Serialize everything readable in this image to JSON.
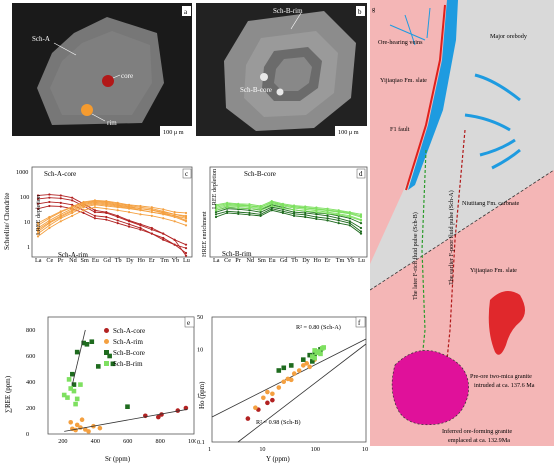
{
  "panels": {
    "a": {
      "label": "a",
      "sch_label": "Sch-A",
      "core_label": "core",
      "rim_label": "rim",
      "scale": "100 μ m"
    },
    "b": {
      "label": "b",
      "rim_label": "Sch-B-rim",
      "core_label": "Sch-B-core",
      "scale": "100 μ m"
    },
    "c": {
      "label": "c",
      "ylabel": "Scheelite/ Chondrite",
      "core_label": "Sch-A-core",
      "rim_label": "Sch-A-rim",
      "side_top": "LREE depletion",
      "side_bottom": "HREE enrichment",
      "elements": [
        "La",
        "Ce",
        "Pr",
        "Nd",
        "Sm",
        "Eu",
        "Gd",
        "Tb",
        "Dy",
        "Ho",
        "Er",
        "Tm",
        "Yb",
        "Lu"
      ],
      "yticks": [
        "1000",
        "100",
        "10",
        "1"
      ]
    },
    "d": {
      "label": "d",
      "core_label": "Sch-B-core",
      "rim_label": "Sch-B-rim",
      "side_top": "LREE depletion",
      "side_bottom": "HREE enrichment",
      "elements": [
        "La",
        "Ce",
        "Pr",
        "Nd",
        "Sm",
        "Eu",
        "Gd",
        "Tb",
        "Dy",
        "Ho",
        "Er",
        "Tm",
        "Yb",
        "Lu"
      ]
    },
    "e": {
      "label": "e",
      "xlabel": "Sr (ppm)",
      "ylabel": "∑REE (ppm)",
      "xticks": [
        "200",
        "400",
        "600",
        "800",
        "1000"
      ],
      "yticks": [
        "0",
        "200",
        "400",
        "600",
        "800"
      ],
      "legend": [
        {
          "name": "Sch-A-core",
          "color": "#b22222",
          "shape": "circle"
        },
        {
          "name": "Sch-A-rim",
          "color": "#f4a040",
          "shape": "circle"
        },
        {
          "name": "Sch-B-core",
          "color": "#1e6b1e",
          "shape": "square"
        },
        {
          "name": "Sch-B-rim",
          "color": "#7ee060",
          "shape": "square"
        }
      ]
    },
    "f": {
      "label": "f",
      "xlabel": "Y (ppm)",
      "ylabel": "Ho (ppm)",
      "xticks": [
        "1",
        "10",
        "100",
        "1000"
      ],
      "yticks": [
        "0.1",
        "1",
        "10",
        "50"
      ],
      "r2_a": "R² = 0.80 (Sch-A)",
      "r2_b": "R² = 0.98 (Sch-B)"
    },
    "g": {
      "label": "g",
      "ore_veins": "Ore-hearing veins",
      "major_orebody": "Major orebody",
      "yijiaqiao_upper": "Yijiaqiao Fm. slate",
      "f1_fault": "F1 fault",
      "later_pulse": "The later F-rich fluid pulse (Sch-B)",
      "earlier_pulse": "The earlier F-poor fluid pulse (Sch-A)",
      "niutitang": "Niutitang Fm. carbnate",
      "yijiaqiao_lower": "Yijiaqiao Fm. slate",
      "pre_ore": [
        "Pre-ore two-mica granite",
        "intruded at ca. 137.6 Ma"
      ],
      "inferred": [
        "Inferred ore-forming granite",
        "emplaced at ca. 132.9Ma"
      ]
    }
  },
  "chart_data": [
    {
      "type": "line",
      "panel": "c",
      "x": [
        "La",
        "Ce",
        "Pr",
        "Nd",
        "Sm",
        "Eu",
        "Gd",
        "Tb",
        "Dy",
        "Ho",
        "Er",
        "Tm",
        "Yb",
        "Lu"
      ],
      "ylim": [
        1,
        1000
      ],
      "yscale": "log",
      "series": [
        {
          "group": "Sch-A-core",
          "values": [
            90,
            100,
            95,
            80,
            50,
            30,
            28,
            20,
            14,
            10,
            7,
            5,
            3,
            2
          ]
        },
        {
          "group": "Sch-A-core",
          "values": [
            120,
            130,
            120,
            100,
            60,
            35,
            30,
            22,
            15,
            11,
            8,
            5,
            3,
            0.8
          ]
        },
        {
          "group": "Sch-A-core",
          "values": [
            60,
            70,
            65,
            55,
            35,
            22,
            20,
            15,
            11,
            8,
            5,
            3.5,
            2,
            1.5
          ]
        },
        {
          "group": "Sch-A-core",
          "values": [
            40,
            50,
            48,
            40,
            28,
            18,
            16,
            12,
            9,
            7,
            5,
            3,
            2,
            1
          ]
        },
        {
          "group": "Sch-A-rim",
          "values": [
            8,
            15,
            25,
            40,
            60,
            70,
            65,
            55,
            48,
            40,
            35,
            28,
            22,
            15
          ]
        },
        {
          "group": "Sch-A-rim",
          "values": [
            10,
            18,
            30,
            45,
            65,
            75,
            70,
            60,
            52,
            45,
            40,
            32,
            25,
            20
          ]
        },
        {
          "group": "Sch-A-rim",
          "values": [
            6,
            12,
            20,
            32,
            50,
            60,
            55,
            48,
            42,
            36,
            30,
            25,
            20,
            14
          ]
        },
        {
          "group": "Sch-A-rim",
          "values": [
            5,
            10,
            18,
            28,
            45,
            55,
            50,
            45,
            40,
            35,
            30,
            26,
            22,
            18
          ]
        },
        {
          "group": "Sch-A-rim",
          "values": [
            12,
            20,
            32,
            48,
            70,
            80,
            75,
            65,
            55,
            50,
            45,
            38,
            30,
            28
          ]
        },
        {
          "group": "Sch-A-rim",
          "values": [
            4,
            8,
            14,
            22,
            35,
            45,
            40,
            35,
            30,
            25,
            22,
            18,
            14,
            10
          ]
        },
        {
          "group": "Sch-A-rim",
          "values": [
            7,
            13,
            22,
            35,
            55,
            65,
            60,
            52,
            45,
            40,
            36,
            30,
            25,
            22
          ]
        }
      ]
    },
    {
      "type": "line",
      "panel": "d",
      "x": [
        "La",
        "Ce",
        "Pr",
        "Nd",
        "Sm",
        "Eu",
        "Gd",
        "Tb",
        "Dy",
        "Ho",
        "Er",
        "Tm",
        "Yb",
        "Lu"
      ],
      "ylim": [
        1,
        1000
      ],
      "yscale": "log",
      "series": [
        {
          "group": "Sch-B-core",
          "values": [
            30,
            40,
            38,
            35,
            30,
            45,
            38,
            30,
            28,
            25,
            22,
            18,
            14,
            8
          ]
        },
        {
          "group": "Sch-B-core",
          "values": [
            25,
            32,
            30,
            28,
            25,
            40,
            32,
            26,
            24,
            20,
            18,
            15,
            12,
            6
          ]
        },
        {
          "group": "Sch-B-core",
          "values": [
            35,
            45,
            42,
            40,
            36,
            55,
            45,
            36,
            32,
            28,
            26,
            22,
            18,
            12
          ]
        },
        {
          "group": "Sch-B-core",
          "values": [
            20,
            28,
            26,
            24,
            22,
            35,
            28,
            22,
            20,
            17,
            15,
            12,
            10,
            5
          ]
        },
        {
          "group": "Sch-B-rim",
          "values": [
            40,
            50,
            48,
            45,
            40,
            60,
            50,
            42,
            38,
            34,
            30,
            26,
            22,
            16
          ]
        },
        {
          "group": "Sch-B-rim",
          "values": [
            45,
            55,
            52,
            50,
            44,
            70,
            55,
            46,
            42,
            38,
            34,
            30,
            26,
            20
          ]
        },
        {
          "group": "Sch-B-rim",
          "values": [
            50,
            60,
            56,
            52,
            46,
            65,
            54,
            48,
            44,
            40,
            36,
            32,
            28,
            22
          ]
        },
        {
          "group": "Sch-B-rim",
          "values": [
            35,
            44,
            42,
            40,
            35,
            50,
            42,
            36,
            33,
            30,
            27,
            24,
            20,
            15
          ]
        },
        {
          "group": "Sch-B-rim",
          "values": [
            55,
            65,
            60,
            58,
            50,
            75,
            60,
            52,
            48,
            44,
            40,
            35,
            30,
            25
          ]
        }
      ]
    },
    {
      "type": "scatter",
      "panel": "e",
      "xlabel": "Sr (ppm)",
      "ylabel": "∑REE (ppm)",
      "xlim": [
        100,
        1000
      ],
      "ylim": [
        0,
        900
      ],
      "series": [
        {
          "name": "Sch-A-core",
          "points": [
            [
              700,
              140
            ],
            [
              800,
              150
            ],
            [
              900,
              180
            ],
            [
              950,
              200
            ],
            [
              780,
              130
            ]
          ]
        },
        {
          "name": "Sch-A-rim",
          "points": [
            [
              250,
              40
            ],
            [
              300,
              50
            ],
            [
              330,
              35
            ],
            [
              380,
              60
            ],
            [
              280,
              70
            ],
            [
              420,
              45
            ],
            [
              350,
              20
            ],
            [
              240,
              90
            ],
            [
              310,
              110
            ],
            [
              270,
              30
            ]
          ]
        },
        {
          "name": "Sch-B-core",
          "points": [
            [
              320,
              700
            ],
            [
              340,
              690
            ],
            [
              280,
              630
            ],
            [
              480,
              600
            ],
            [
              500,
              540
            ],
            [
              250,
              460
            ],
            [
              410,
              520
            ],
            [
              370,
              710
            ],
            [
              260,
              380
            ],
            [
              590,
              210
            ]
          ]
        },
        {
          "name": "Sch-B-rim",
          "points": [
            [
              200,
              300
            ],
            [
              220,
              280
            ],
            [
              240,
              350
            ],
            [
              260,
              330
            ],
            [
              230,
              420
            ],
            [
              280,
              270
            ],
            [
              300,
              380
            ],
            [
              270,
              230
            ]
          ]
        }
      ]
    },
    {
      "type": "scatter",
      "panel": "f",
      "xlabel": "Y (ppm)",
      "ylabel": "Ho (ppm)",
      "xscale": "log",
      "yscale": "log",
      "xlim": [
        1,
        1000
      ],
      "ylim": [
        0.1,
        50
      ],
      "series": [
        {
          "name": "Sch-A-core",
          "points": [
            [
              5,
              0.32
            ],
            [
              8,
              0.5
            ],
            [
              12,
              0.7
            ],
            [
              15,
              0.8
            ]
          ]
        },
        {
          "name": "Sch-A-rim",
          "points": [
            [
              7,
              0.55
            ],
            [
              10,
              0.9
            ],
            [
              12,
              1.2
            ],
            [
              15,
              1.1
            ],
            [
              20,
              1.5
            ],
            [
              25,
              2.0
            ],
            [
              30,
              2.3
            ],
            [
              35,
              2.2
            ],
            [
              40,
              3.0
            ],
            [
              50,
              3.5
            ],
            [
              60,
              4.5
            ],
            [
              70,
              5.0
            ],
            [
              80,
              4.2
            ],
            [
              100,
              6.0
            ]
          ]
        },
        {
          "name": "Sch-B-core",
          "points": [
            [
              20,
              3.5
            ],
            [
              25,
              4.0
            ],
            [
              35,
              4.5
            ],
            [
              60,
              6.0
            ],
            [
              80,
              7.5
            ],
            [
              100,
              8.0
            ],
            [
              130,
              10.0
            ],
            [
              90,
              5.5
            ]
          ]
        },
        {
          "name": "Sch-B-rim",
          "points": [
            [
              90,
              7.0
            ],
            [
              100,
              6.5
            ],
            [
              110,
              8.5
            ],
            [
              120,
              9.0
            ],
            [
              140,
              10.5
            ],
            [
              150,
              11.0
            ],
            [
              100,
              9.5
            ],
            [
              130,
              8.0
            ]
          ]
        }
      ]
    }
  ]
}
